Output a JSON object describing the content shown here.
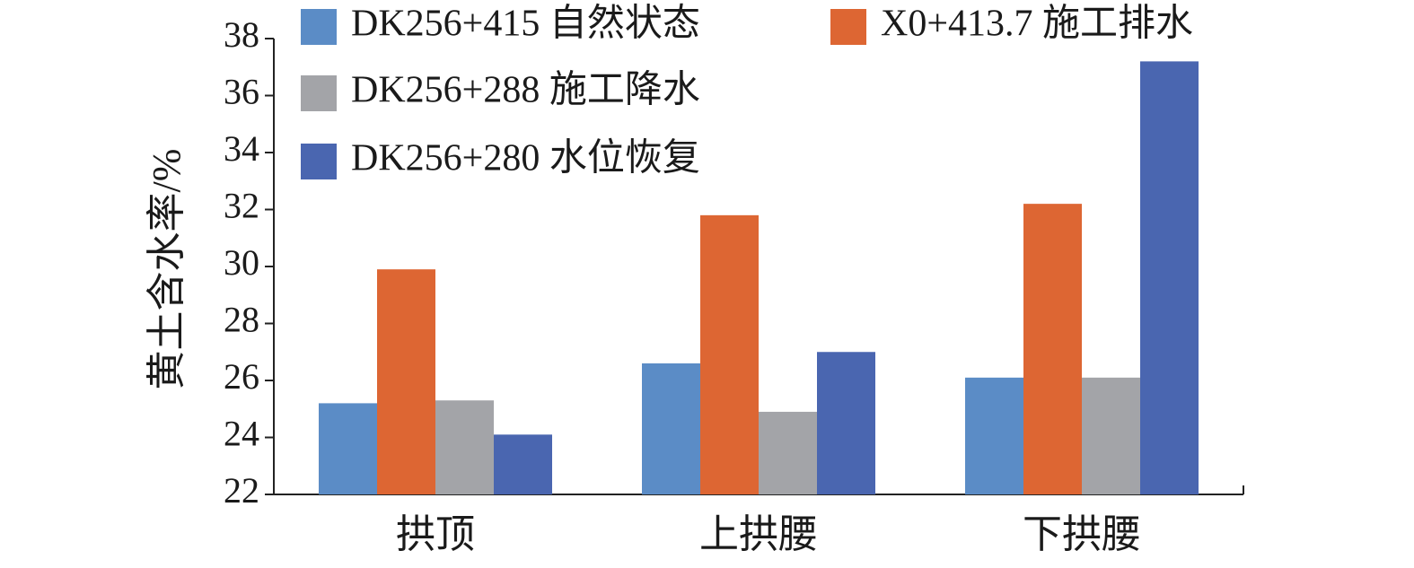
{
  "chart_data": {
    "type": "bar",
    "y_label": "黄土含水率/%",
    "categories": [
      "拱顶",
      "上拱腰",
      "下拱腰"
    ],
    "series": [
      {
        "name": "DK256+415 自然状态",
        "color": "#5b8cc6",
        "values": [
          25.2,
          26.6,
          26.1
        ]
      },
      {
        "name": "X0+413.7 施工排水",
        "color": "#dd6633",
        "values": [
          29.9,
          31.8,
          32.2
        ]
      },
      {
        "name": "DK256+288 施工降水",
        "color": "#a3a4a8",
        "values": [
          25.3,
          24.9,
          26.1
        ]
      },
      {
        "name": "DK256+280 水位恢复",
        "color": "#4a66b0",
        "values": [
          24.1,
          27.0,
          37.2
        ]
      }
    ],
    "ylim": [
      22,
      38
    ],
    "yticks": [
      22,
      24,
      26,
      28,
      30,
      32,
      34,
      36,
      38
    ]
  }
}
